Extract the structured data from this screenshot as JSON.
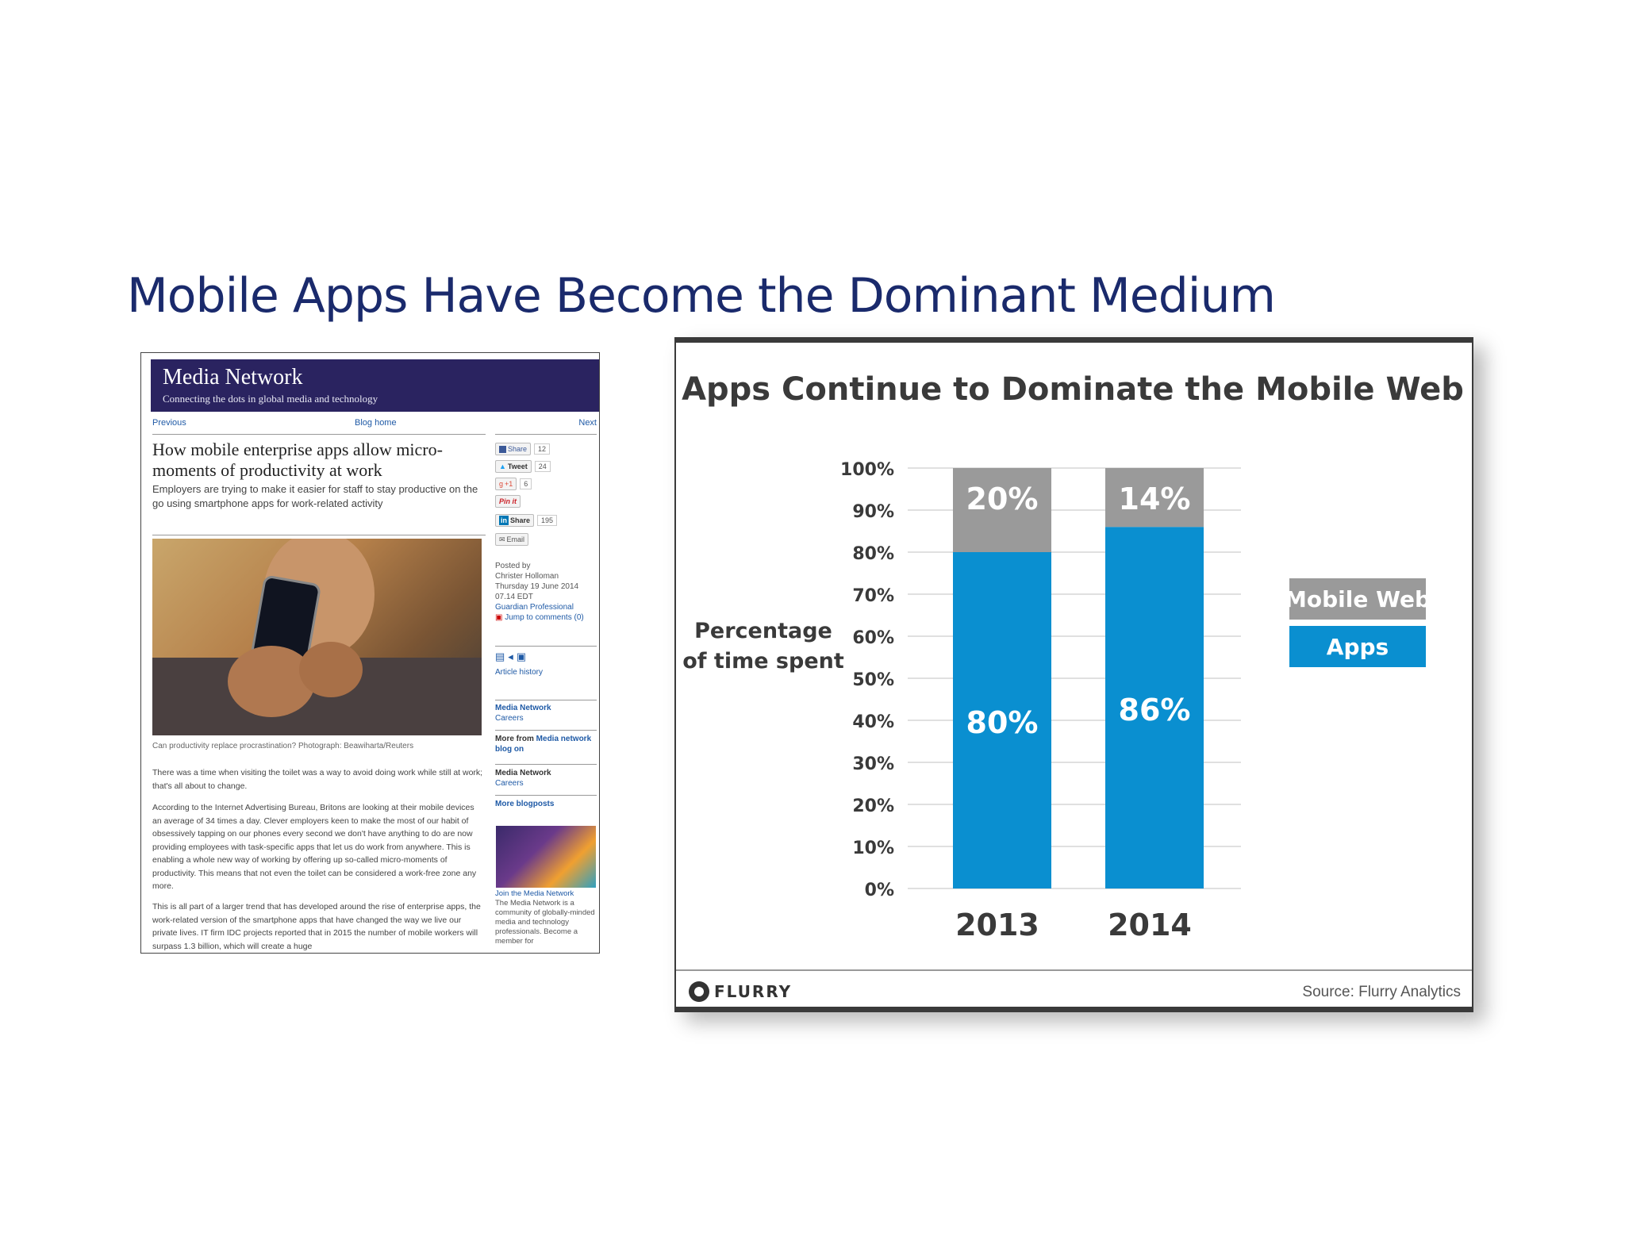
{
  "slide": {
    "title": "Mobile Apps Have Become the Dominant Medium"
  },
  "article": {
    "section_title": "Media Network",
    "tagline": "Connecting the dots in global media and technology",
    "nav": {
      "previous": "Previous",
      "home": "Blog home",
      "next": "Next"
    },
    "headline": "How mobile enterprise apps allow micro-moments of productivity at work",
    "standfirst": "Employers are trying to make it easier for staff to stay productive on the go using smartphone apps for work-related activity",
    "caption": "Can productivity replace procrastination? Photograph: Beawiharta/Reuters",
    "paragraphs": [
      "There was a time when visiting the toilet was a way to avoid doing work while still at work; that's all about to change.",
      "According to the Internet Advertising Bureau, Britons are looking at their mobile devices an average of 34 times a day. Clever employers keen to make the most of our habit of obsessively tapping on our phones every second we don't have anything to do are now providing employees with task-specific apps that let us do work from anywhere. This is enabling a whole new way of working by offering up so-called micro-moments of productivity. This means that not even the toilet can be considered a work-free zone any more.",
      "This is all part of a larger trend that has developed around the rise of enterprise apps, the work-related version of the smartphone apps that have changed the way we live our private lives. IT firm IDC projects reported that in 2015 the number of mobile workers will surpass 1.3 billion, which will create a huge"
    ],
    "share": {
      "facebook_label": "Share",
      "facebook_count": "12",
      "tweet_label": "Tweet",
      "tweet_count": "24",
      "gplus_label": "+1",
      "gplus_count": "6",
      "pinit_label": "Pin it",
      "linkedin_label": "Share",
      "linkedin_count": "195",
      "email_label": "Email"
    },
    "meta": {
      "posted_by": "Posted by",
      "author": "Christer Holloman",
      "date": "Thursday 19 June 2014",
      "time": "07.14 EDT",
      "source": "Guardian Professional",
      "comments": "Jump to comments (0)",
      "history": "Article history"
    },
    "sidebar": {
      "network1": "Media Network",
      "careers1": "Careers",
      "more_from_prefix": "More from ",
      "more_from_link": "Media network blog on",
      "network2": "Media Network",
      "careers2": "Careers",
      "more_blogposts": "More blogposts",
      "join_title": "Join the Media Network",
      "join_text": "The Media Network is a community of globally-minded media and technology professionals. Become a member for"
    }
  },
  "chart_data": {
    "type": "bar",
    "stacked": true,
    "title": "Apps Continue to Dominate the Mobile Web",
    "ylabel": "Percentage of time spent",
    "ylabel_lines": [
      "Percentage",
      "of time spent"
    ],
    "xlabel": "",
    "categories": [
      "2013",
      "2014"
    ],
    "series": [
      {
        "name": "Apps",
        "values": [
          80,
          86
        ],
        "labels": [
          "80%",
          "86%"
        ],
        "color": "#0a8fd0"
      },
      {
        "name": "Mobile Web",
        "values": [
          20,
          14
        ],
        "labels": [
          "20%",
          "14%"
        ],
        "color": "#9a9a9a"
      }
    ],
    "ylim": [
      0,
      100
    ],
    "yticks": [
      0,
      10,
      20,
      30,
      40,
      50,
      60,
      70,
      80,
      90,
      100
    ],
    "ytick_labels": [
      "0%",
      "10%",
      "20%",
      "30%",
      "40%",
      "50%",
      "60%",
      "70%",
      "80%",
      "90%",
      "100%"
    ],
    "grid": true,
    "legend": [
      "Mobile Web",
      "Apps"
    ],
    "legend_position": "right",
    "brand": "FLURRY",
    "source": "Source: Flurry Analytics"
  }
}
